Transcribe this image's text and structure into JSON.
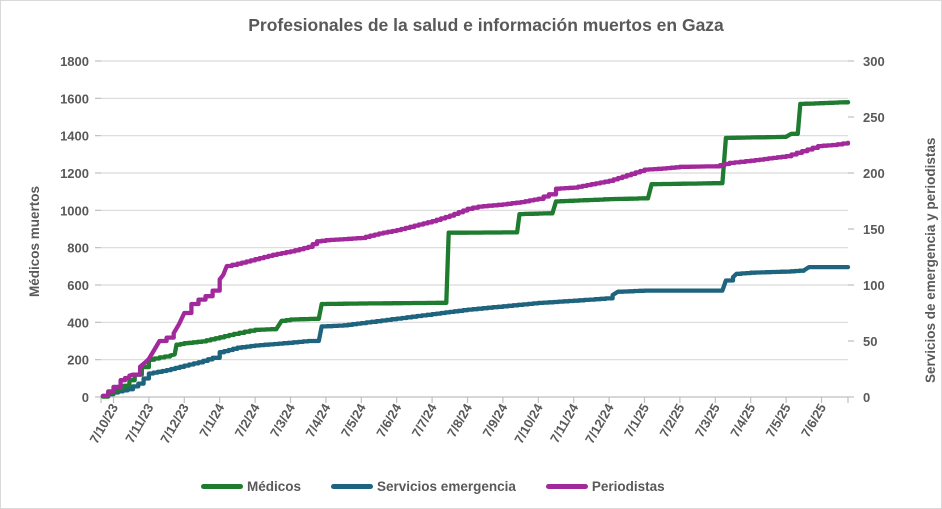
{
  "chart_data": {
    "type": "line",
    "subtype": "cumulative-step",
    "title": "Profesionales de la salud e información muertos en Gaza",
    "ylabel_left": "Médicos muertos",
    "ylabel_right": "Servicios de emergencia y periodistas",
    "ylim_left": [
      0,
      1800
    ],
    "ylim_right": [
      0,
      300
    ],
    "yticks_left": [
      0,
      200,
      400,
      600,
      800,
      1000,
      1200,
      1400,
      1600,
      1800
    ],
    "yticks_right": [
      0,
      50,
      100,
      150,
      200,
      250,
      300
    ],
    "grid": "horizontal",
    "legend_position": "bottom",
    "x_unit": "months since 7/10/23 (7 Oct 2023), day/month/year labels",
    "xtick_labels": [
      "7/10/23",
      "7/11/23",
      "7/12/23",
      "7/1/24",
      "7/2/24",
      "7/3/24",
      "7/4/24",
      "7/5/24",
      "7/6/24",
      "7/7/24",
      "7/8/24",
      "7/9/24",
      "7/10/24",
      "7/11/24",
      "7/12/24",
      "7/1/25",
      "7/2/25",
      "7/3/25",
      "7/4/25",
      "7/5/25",
      "7/6/25"
    ],
    "colors": {
      "grid": "#D9D9D9",
      "axis_line": "#BFBFBF",
      "text": "#595959",
      "border": "#D9D9D9"
    },
    "series": [
      {
        "id": "servicios",
        "name": "Servicios emergencia",
        "axis": "right",
        "color": "#1F647E",
        "points": [
          [
            -0.3,
            1
          ],
          [
            0,
            4
          ],
          [
            0.4,
            7
          ],
          [
            0.7,
            12
          ],
          [
            1,
            21
          ],
          [
            1.5,
            24
          ],
          [
            2,
            28
          ],
          [
            2.4,
            31
          ],
          [
            2.8,
            35
          ],
          [
            3,
            40
          ],
          [
            3.5,
            44
          ],
          [
            4,
            46
          ],
          [
            4.8,
            48
          ],
          [
            5.5,
            50
          ],
          [
            5.8,
            50
          ],
          [
            5.88,
            63
          ],
          [
            6.5,
            64
          ],
          [
            7,
            66
          ],
          [
            8,
            70
          ],
          [
            9,
            74
          ],
          [
            9.5,
            76
          ],
          [
            10,
            78
          ],
          [
            11,
            81
          ],
          [
            12,
            84
          ],
          [
            13,
            86
          ],
          [
            13.9,
            88
          ],
          [
            14.1,
            91
          ],
          [
            14.25,
            94
          ],
          [
            15,
            95
          ],
          [
            17.2,
            95
          ],
          [
            17.3,
            104
          ],
          [
            17.5,
            107
          ],
          [
            17.6,
            110
          ],
          [
            18,
            111
          ],
          [
            19,
            112
          ],
          [
            19.5,
            113
          ],
          [
            19.65,
            116
          ],
          [
            20.75,
            116
          ]
        ]
      },
      {
        "id": "medicos",
        "name": "Médicos",
        "axis": "left",
        "color": "#1E7B2F",
        "points": [
          [
            -0.3,
            2
          ],
          [
            0,
            35
          ],
          [
            0.3,
            60
          ],
          [
            0.6,
            120
          ],
          [
            0.8,
            160
          ],
          [
            1,
            200
          ],
          [
            1.3,
            212
          ],
          [
            1.6,
            222
          ],
          [
            1.73,
            228
          ],
          [
            1.78,
            280
          ],
          [
            2,
            288
          ],
          [
            2.5,
            298
          ],
          [
            3,
            320
          ],
          [
            3.4,
            338
          ],
          [
            3.7,
            350
          ],
          [
            4,
            360
          ],
          [
            4.6,
            364
          ],
          [
            4.75,
            408
          ],
          [
            5,
            415
          ],
          [
            5.8,
            420
          ],
          [
            5.88,
            498
          ],
          [
            6.5,
            500
          ],
          [
            9.4,
            505
          ],
          [
            9.47,
            880
          ],
          [
            11.4,
            882
          ],
          [
            11.47,
            980
          ],
          [
            12.4,
            985
          ],
          [
            12.5,
            1048
          ],
          [
            13,
            1052
          ],
          [
            14,
            1060
          ],
          [
            15.1,
            1065
          ],
          [
            15.2,
            1140
          ],
          [
            17.2,
            1146
          ],
          [
            17.3,
            1388
          ],
          [
            19,
            1394
          ],
          [
            19.15,
            1410
          ],
          [
            19.33,
            1412
          ],
          [
            19.4,
            1570
          ],
          [
            20.75,
            1580
          ]
        ]
      },
      {
        "id": "periodistas",
        "name": "Periodistas",
        "axis": "right",
        "color": "#A2299B",
        "points": [
          [
            -0.3,
            1
          ],
          [
            0,
            9
          ],
          [
            0.2,
            15
          ],
          [
            0.45,
            19
          ],
          [
            0.55,
            20
          ],
          [
            0.75,
            27
          ],
          [
            0.9,
            31
          ],
          [
            1,
            34
          ],
          [
            1.15,
            42
          ],
          [
            1.3,
            50
          ],
          [
            1.5,
            53
          ],
          [
            1.7,
            57
          ],
          [
            1.85,
            65
          ],
          [
            2,
            75
          ],
          [
            2.2,
            83
          ],
          [
            2.4,
            87
          ],
          [
            2.6,
            90
          ],
          [
            2.8,
            95
          ],
          [
            3,
            105
          ],
          [
            3.1,
            109
          ],
          [
            3.2,
            117
          ],
          [
            3.5,
            119
          ],
          [
            4,
            123
          ],
          [
            4.5,
            127
          ],
          [
            5,
            130
          ],
          [
            5.5,
            134
          ],
          [
            5.75,
            139
          ],
          [
            6,
            140
          ],
          [
            6.5,
            141
          ],
          [
            7,
            142
          ],
          [
            7.5,
            146
          ],
          [
            8,
            149
          ],
          [
            8.5,
            153
          ],
          [
            9,
            157
          ],
          [
            9.5,
            162
          ],
          [
            10,
            168
          ],
          [
            10.3,
            170
          ],
          [
            11,
            172
          ],
          [
            11.5,
            174
          ],
          [
            12,
            177
          ],
          [
            12.3,
            181
          ],
          [
            12.5,
            186
          ],
          [
            13,
            187
          ],
          [
            13.5,
            190
          ],
          [
            14,
            193
          ],
          [
            14.5,
            198
          ],
          [
            15,
            203
          ],
          [
            15.5,
            204
          ],
          [
            16,
            205.5
          ],
          [
            17,
            206
          ],
          [
            17.4,
            209
          ],
          [
            18,
            211
          ],
          [
            18.5,
            213
          ],
          [
            19,
            215
          ],
          [
            19.3,
            218
          ],
          [
            19.6,
            221
          ],
          [
            19.9,
            224
          ],
          [
            20.3,
            225
          ],
          [
            20.75,
            227
          ]
        ]
      }
    ]
  }
}
